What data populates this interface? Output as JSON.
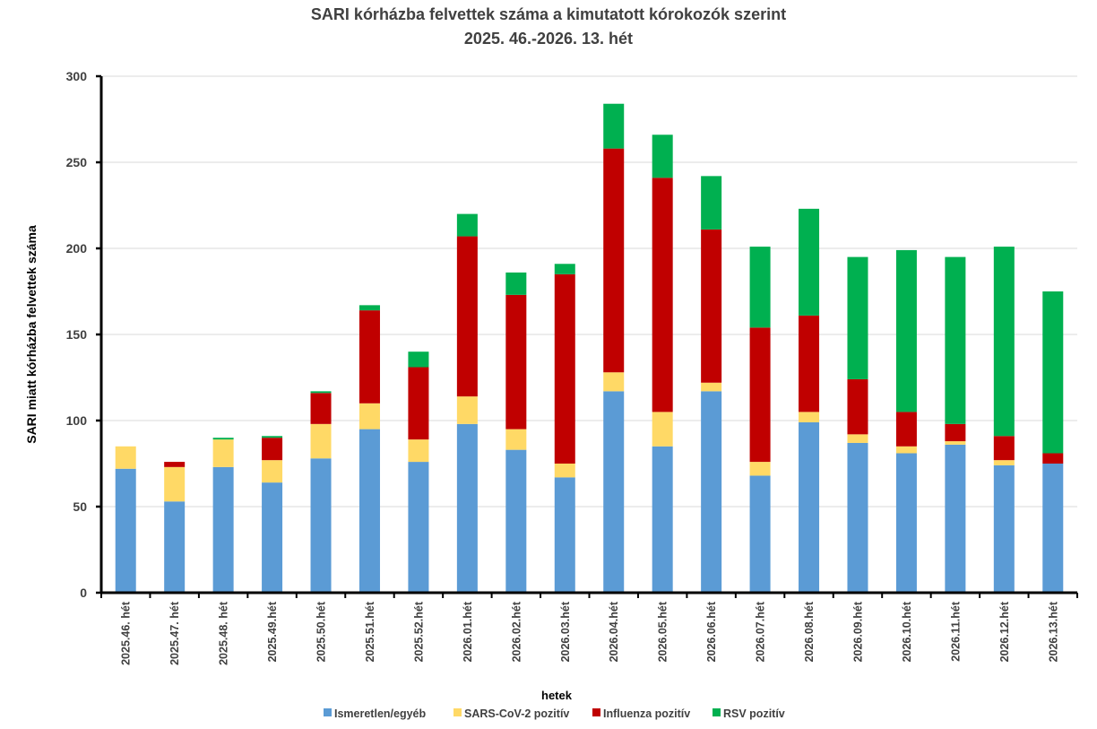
{
  "chart_data": {
    "type": "bar",
    "stacked": true,
    "title": "SARI kórházba felvettek száma a kimutatott kórokozók szerint",
    "subtitle": "2025. 46.-2026. 13. hét",
    "xlabel": "hetek",
    "ylabel": "SARI miatt kórházba felvettek száma",
    "ylim": [
      0,
      300
    ],
    "yticks": [
      0,
      50,
      100,
      150,
      200,
      250,
      300
    ],
    "grid": true,
    "legend_position": "bottom",
    "categories": [
      "2025.46. hét",
      "2025.47. hét",
      "2025.48. hét",
      "2025.49.hét",
      "2025.50.hét",
      "2025.51.hét",
      "2025.52.hét",
      "2026.01.hét",
      "2026.02.hét",
      "2026.03.hét",
      "2026.04.hét",
      "2026.05.hét",
      "2026.06.hét",
      "2026.07.hét",
      "2026.08.hét",
      "2026.09.hét",
      "2026.10.hét",
      "2026.11.hét",
      "2026.12.hét",
      "2026.13.hét"
    ],
    "series": [
      {
        "name": "Ismeretlen/egyéb",
        "color": "#5b9bd5",
        "values": [
          72,
          53,
          73,
          64,
          78,
          95,
          76,
          98,
          83,
          67,
          117,
          85,
          117,
          68,
          99,
          87,
          81,
          86,
          74,
          75
        ]
      },
      {
        "name": "SARS-CoV-2 pozitív",
        "color": "#ffd966",
        "values": [
          13,
          20,
          16,
          13,
          20,
          15,
          13,
          16,
          12,
          8,
          11,
          20,
          5,
          8,
          6,
          5,
          4,
          2,
          3,
          0
        ]
      },
      {
        "name": "Influenza pozitív",
        "color": "#c00000",
        "values": [
          0,
          3,
          0,
          13,
          18,
          54,
          42,
          93,
          78,
          110,
          130,
          136,
          89,
          78,
          56,
          32,
          20,
          10,
          14,
          6
        ]
      },
      {
        "name": "RSV pozitív",
        "color": "#00b050",
        "values": [
          0,
          0,
          1,
          1,
          1,
          3,
          9,
          13,
          13,
          6,
          26,
          25,
          31,
          47,
          62,
          71,
          94,
          97,
          110,
          94
        ]
      }
    ]
  }
}
